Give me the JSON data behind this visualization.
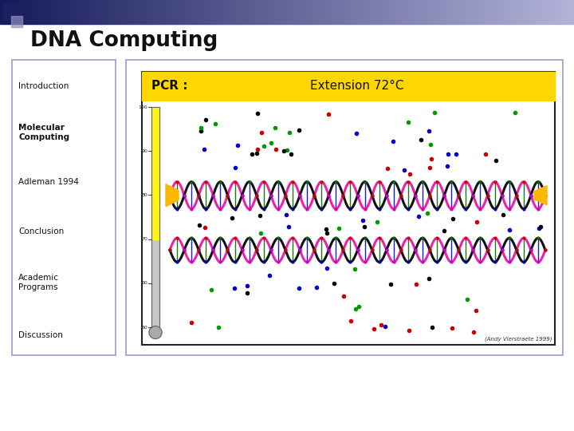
{
  "title": "DNA Computing",
  "nav_items": [
    "Introduction",
    "Molecular\nComputing",
    "Adleman 1994",
    "Conclusion",
    "Academic\nPrograms",
    "Discussion"
  ],
  "nav_bold": [
    false,
    true,
    false,
    false,
    false,
    false
  ],
  "nav_box_color": "#ffffff",
  "nav_box_border": "#9999cc",
  "content_box_color": "#ffffff",
  "content_box_border": "#9999cc",
  "pcr_bg": "#FFD700",
  "caption": "(Andy Vierstraete 1999)",
  "slide_bg": "#ffffff",
  "outer_bg": "#e8e8f0"
}
